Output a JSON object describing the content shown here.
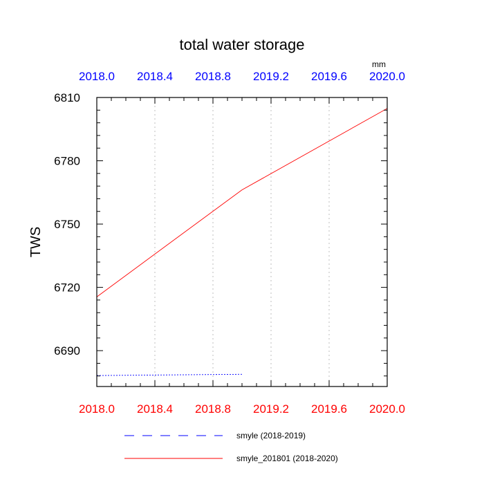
{
  "chart_data": {
    "type": "line",
    "title": "total water storage",
    "ylabel": "TWS",
    "units": "mm",
    "xlim": [
      2018.0,
      2020.0
    ],
    "ylim": [
      6673,
      6810
    ],
    "x_ticks": [
      2018.0,
      2018.4,
      2018.8,
      2019.2,
      2019.6,
      2020.0
    ],
    "x_tick_labels": [
      "2018.0",
      "2018.4",
      "2018.8",
      "2019.2",
      "2019.6",
      "2020.0"
    ],
    "y_ticks": [
      6690,
      6720,
      6750,
      6780,
      6810
    ],
    "y_tick_labels": [
      "6690",
      "6720",
      "6750",
      "6780",
      "6810"
    ],
    "grid": "vertical dotted",
    "legend_position": "bottom",
    "colors": {
      "top_axis_labels": "#0000ff",
      "bottom_axis_labels": "#ff0000"
    },
    "series": [
      {
        "name": "smyle (2018-2019)",
        "color": "#0000ff",
        "style": "dashed",
        "x": [
          2018.0,
          2019.0
        ],
        "y": [
          6678.2,
          6678.8
        ]
      },
      {
        "name": "smyle_201801 (2018-2020)",
        "color": "#ff0000",
        "style": "solid",
        "x": [
          2018.0,
          2019.0,
          2020.0
        ],
        "y": [
          6715.5,
          6766.2,
          6804.8
        ]
      }
    ]
  }
}
